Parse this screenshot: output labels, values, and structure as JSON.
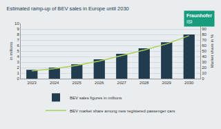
{
  "chart_data": {
    "type": "bar",
    "title": "Estimated ramp-up of BEV sales in Europe until 2030",
    "categories": [
      "2023",
      "2024",
      "2025",
      "2026",
      "2027",
      "2028",
      "2029",
      "2030"
    ],
    "series": [
      {
        "name": "BEV sales figures in millions",
        "type": "bar",
        "color": "#213b4f",
        "values": [
          1.6,
          2.0,
          2.6,
          3.5,
          4.5,
          5.5,
          6.6,
          8.0
        ]
      },
      {
        "name": "BEV market share among new registered passenger cars",
        "type": "line",
        "axis": "y2",
        "color": "#a9d25c",
        "values": [
          14,
          18,
          24,
          32,
          42,
          52,
          63,
          78
        ]
      }
    ],
    "ylabel": "in millions",
    "y2label": "Market share in %",
    "ylim": [
      0,
      10
    ],
    "yticks": [
      0,
      1,
      2,
      3,
      4,
      5,
      6,
      7,
      8,
      9,
      10
    ],
    "y2lim": [
      0,
      100
    ],
    "y2ticks": [
      0,
      10,
      20,
      30,
      40,
      50,
      60,
      70,
      80,
      90,
      100
    ],
    "grid": true,
    "legend": "bottom"
  },
  "logo": {
    "text": "Fraunhofer",
    "subtext": "ISI"
  }
}
